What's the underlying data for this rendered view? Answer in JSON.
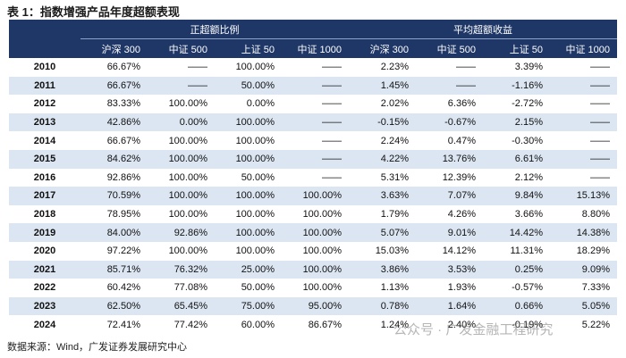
{
  "title": "表 1：指数增强产品年度超额表现",
  "table": {
    "groups": [
      "正超额比例",
      "平均超额收益"
    ],
    "columns": [
      "沪深 300",
      "中证 500",
      "上证 50",
      "中证 1000",
      "沪深 300",
      "中证 500",
      "上证 50",
      "中证 1000"
    ],
    "rows": [
      [
        "2010",
        "66.67%",
        "——",
        "100.00%",
        "——",
        "2.23%",
        "——",
        "3.39%",
        "——"
      ],
      [
        "2011",
        "66.67%",
        "——",
        "50.00%",
        "——",
        "1.45%",
        "——",
        "-1.16%",
        "——"
      ],
      [
        "2012",
        "83.33%",
        "100.00%",
        "0.00%",
        "——",
        "2.02%",
        "6.36%",
        "-2.72%",
        "——"
      ],
      [
        "2013",
        "42.86%",
        "0.00%",
        "100.00%",
        "——",
        "-0.15%",
        "-0.67%",
        "2.15%",
        "——"
      ],
      [
        "2014",
        "66.67%",
        "100.00%",
        "100.00%",
        "——",
        "2.24%",
        "0.47%",
        "-0.30%",
        "——"
      ],
      [
        "2015",
        "84.62%",
        "100.00%",
        "100.00%",
        "——",
        "4.22%",
        "13.76%",
        "6.61%",
        "——"
      ],
      [
        "2016",
        "92.86%",
        "100.00%",
        "50.00%",
        "——",
        "5.31%",
        "12.39%",
        "2.12%",
        "——"
      ],
      [
        "2017",
        "70.59%",
        "100.00%",
        "100.00%",
        "100.00%",
        "3.63%",
        "7.07%",
        "9.84%",
        "15.13%"
      ],
      [
        "2018",
        "78.95%",
        "100.00%",
        "100.00%",
        "100.00%",
        "1.79%",
        "4.26%",
        "3.66%",
        "8.80%"
      ],
      [
        "2019",
        "84.00%",
        "92.86%",
        "100.00%",
        "100.00%",
        "5.07%",
        "9.01%",
        "14.42%",
        "14.38%"
      ],
      [
        "2020",
        "97.22%",
        "100.00%",
        "100.00%",
        "100.00%",
        "15.03%",
        "14.12%",
        "11.31%",
        "18.29%"
      ],
      [
        "2021",
        "85.71%",
        "76.32%",
        "25.00%",
        "100.00%",
        "3.86%",
        "3.53%",
        "0.25%",
        "9.09%"
      ],
      [
        "2022",
        "60.42%",
        "77.08%",
        "50.00%",
        "100.00%",
        "1.13%",
        "1.93%",
        "-0.57%",
        "7.33%"
      ],
      [
        "2023",
        "62.50%",
        "65.45%",
        "75.00%",
        "95.00%",
        "0.78%",
        "1.64%",
        "0.66%",
        "5.05%"
      ],
      [
        "2024",
        "72.41%",
        "77.42%",
        "60.00%",
        "86.67%",
        "1.24%",
        "2.40%",
        "-0.19%",
        "5.22%"
      ]
    ]
  },
  "source": "数据来源：Wind，广发证券发展研究中心",
  "watermark": "公众号 · 广发金融工程研究"
}
